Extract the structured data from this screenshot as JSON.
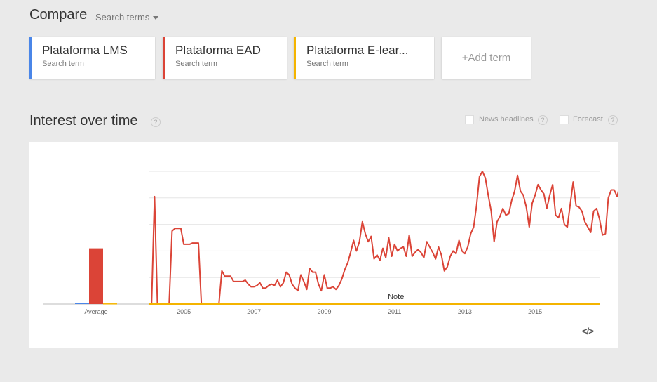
{
  "compare": {
    "title": "Compare",
    "menu_label": "Search terms"
  },
  "terms": [
    {
      "name": "Plataforma LMS",
      "sub": "Search term",
      "color": "#4a86e8"
    },
    {
      "name": "Plataforma EAD",
      "sub": "Search term",
      "color": "#db4437"
    },
    {
      "name": "Plataforma E-lear...",
      "sub": "Search term",
      "color": "#f4b400"
    }
  ],
  "add_term_label": "+Add term",
  "interest": {
    "title": "Interest over time",
    "help_icon": "question-icon",
    "news_headlines_label": "News headlines",
    "forecast_label": "Forecast"
  },
  "embed_label": "</>",
  "chart_data": {
    "type": "line",
    "x_start": 2004.0,
    "x_step_months": 1,
    "x_ticks": [
      "2005",
      "2007",
      "2009",
      "2011",
      "2013",
      "2015"
    ],
    "ylim": [
      0,
      100
    ],
    "grid": true,
    "average_label": "Average",
    "averages": [
      {
        "name": "Plataforma LMS",
        "value": 1,
        "color": "#4a86e8"
      },
      {
        "name": "Plataforma EAD",
        "value": 42,
        "color": "#db4437"
      },
      {
        "name": "Plataforma E-lear...",
        "value": 0.5,
        "color": "#f4b400"
      }
    ],
    "note": {
      "label": "Note",
      "x": 2011.0
    },
    "series": [
      {
        "name": "Plataforma LMS",
        "color": "#4a86e8",
        "values": [
          0,
          0,
          0,
          0,
          0,
          0,
          0,
          0,
          0,
          0,
          0,
          0,
          0,
          0,
          0,
          0,
          0,
          0,
          0,
          0,
          0,
          0,
          0,
          0,
          0,
          0,
          0,
          0,
          0,
          0,
          0,
          0,
          0,
          0,
          0,
          0,
          0,
          0,
          0,
          0,
          0,
          0,
          0,
          0,
          0,
          0,
          0,
          0,
          0,
          0,
          0,
          0,
          0,
          0,
          0,
          0,
          0,
          0,
          0,
          0,
          0,
          0,
          0,
          0,
          0,
          0,
          0,
          0,
          0,
          0,
          0,
          0,
          0,
          0,
          0,
          0,
          0,
          0,
          0,
          0,
          0,
          0,
          0,
          0,
          0,
          0,
          0,
          0,
          0,
          0,
          0,
          0,
          0,
          0,
          0,
          0,
          0,
          0,
          0,
          0,
          0,
          0,
          0,
          0,
          0,
          0,
          0,
          0,
          0,
          0,
          0,
          0,
          0,
          0,
          0,
          0,
          0,
          0,
          0,
          0,
          0,
          0,
          0,
          0,
          0,
          0,
          0,
          0,
          0,
          0,
          0,
          0,
          0,
          0,
          0,
          0,
          0,
          0,
          0,
          0,
          0,
          0,
          0,
          0,
          0,
          0,
          0,
          0,
          0,
          0,
          0,
          0,
          0,
          0,
          0
        ]
      },
      {
        "name": "Plataforma EAD",
        "color": "#db4437",
        "values": [
          0,
          0,
          81,
          0,
          0,
          0,
          0,
          0,
          55,
          57,
          57,
          57,
          45,
          45,
          45,
          46,
          46,
          46,
          0,
          0,
          0,
          0,
          0,
          0,
          0,
          25,
          21,
          21,
          21,
          17,
          17,
          17,
          17,
          18,
          15,
          13,
          13,
          14,
          16,
          12,
          12,
          14,
          15,
          14,
          18,
          13,
          16,
          24,
          22,
          15,
          12,
          10,
          22,
          17,
          11,
          27,
          24,
          24,
          15,
          10,
          22,
          12,
          12,
          13,
          11,
          14,
          19,
          26,
          31,
          39,
          48,
          40,
          47,
          62,
          53,
          47,
          51,
          34,
          37,
          33,
          42,
          35,
          50,
          36,
          45,
          40,
          42,
          43,
          36,
          52,
          36,
          39,
          41,
          39,
          35,
          47,
          43,
          39,
          34,
          43,
          37,
          25,
          28,
          36,
          40,
          38,
          48,
          40,
          38,
          43,
          53,
          58,
          74,
          96,
          100,
          95,
          82,
          70,
          47,
          62,
          66,
          72,
          67,
          68,
          78,
          85,
          97,
          85,
          82,
          73,
          58,
          76,
          82,
          90,
          86,
          83,
          72,
          82,
          90,
          67,
          65,
          72,
          60,
          58,
          75,
          92,
          74,
          73,
          70,
          62,
          58,
          54,
          70,
          72,
          64,
          52,
          53,
          80,
          86,
          86,
          81,
          90,
          70
        ]
      },
      {
        "name": "Plataforma E-lear...",
        "color": "#f4b400",
        "values": [
          0,
          0,
          0,
          0,
          0,
          0,
          0,
          0,
          0,
          0,
          0,
          0,
          0,
          0,
          0,
          0,
          0,
          0,
          0,
          0,
          0,
          0,
          0,
          0,
          0,
          0,
          0,
          0,
          0,
          0,
          0,
          0,
          0,
          0,
          0,
          0,
          0,
          0,
          0,
          0,
          0,
          0,
          0,
          0,
          0,
          0,
          0,
          0,
          0,
          0,
          0,
          0,
          0,
          0,
          0,
          0,
          0,
          0,
          0,
          0,
          0,
          0,
          0,
          0,
          0,
          0,
          0,
          0,
          0,
          0,
          0,
          0,
          0,
          0,
          0,
          0,
          0,
          0,
          0,
          0,
          0,
          0,
          0,
          0,
          0,
          0,
          0,
          0,
          0,
          0,
          0,
          0,
          0,
          0,
          0,
          0,
          0,
          0,
          0,
          0,
          0,
          0,
          0,
          0,
          0,
          0,
          0,
          0,
          0,
          0,
          0,
          0,
          0,
          0,
          0,
          0,
          0,
          0,
          0,
          0,
          0,
          0,
          0,
          0,
          0,
          0,
          0,
          0,
          0,
          0,
          0,
          0,
          0,
          0,
          0,
          0,
          0,
          0,
          0,
          0,
          0,
          0,
          0,
          0,
          0,
          0,
          0,
          0,
          0,
          0,
          0,
          0,
          0,
          0,
          0
        ]
      }
    ]
  }
}
